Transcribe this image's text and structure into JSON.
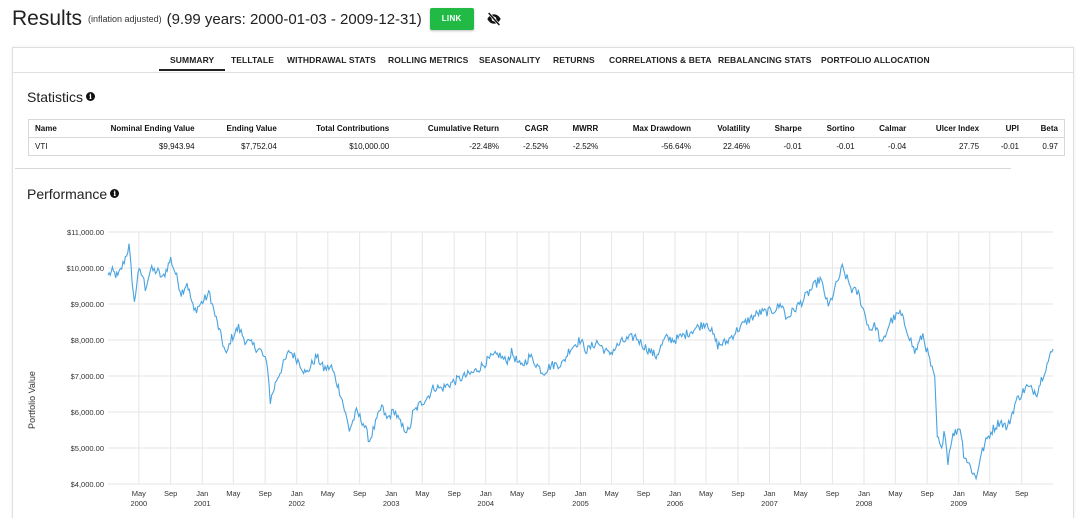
{
  "header": {
    "title": "Results",
    "subtitle": "(inflation adjusted)",
    "range": "(9.99 years: 2000-01-03 - 2009-12-31)",
    "link_label": "LINK",
    "link_color": "#21ba45",
    "visibility_icon": "eye-slash-icon"
  },
  "tabs": [
    {
      "label": "SUMMARY",
      "active": true
    },
    {
      "label": "TELLTALE"
    },
    {
      "label": "WITHDRAWAL STATS"
    },
    {
      "label": "ROLLING METRICS"
    },
    {
      "label": "SEASONALITY"
    },
    {
      "label": "RETURNS"
    },
    {
      "label": "CORRELATIONS & BETA"
    },
    {
      "label": "REBALANCING STATS"
    },
    {
      "label": "PORTFOLIO ALLOCATION"
    }
  ],
  "statistics": {
    "title": "Statistics",
    "columns": [
      "Name",
      "Nominal Ending Value",
      "Ending Value",
      "Total Contributions",
      "Cumulative Return",
      "CAGR",
      "MWRR",
      "Max Drawdown",
      "Volatility",
      "Sharpe",
      "Sortino",
      "Calmar",
      "Ulcer Index",
      "UPI",
      "Beta"
    ],
    "rows": [
      [
        "VTI",
        "$9,943.94",
        "$7,752.04",
        "$10,000.00",
        "-22.48%",
        "-2.52%",
        "-2.52%",
        "-56.64%",
        "22.46%",
        "-0.01",
        "-0.01",
        "-0.04",
        "27.75",
        "-0.01",
        "0.97"
      ]
    ]
  },
  "performance": {
    "title": "Performance",
    "series_color": "#4aa3df"
  },
  "chart_data": {
    "type": "line",
    "ylabel": "Portfolio Value",
    "ylim": [
      4000,
      11000
    ],
    "yticks": [
      "$4,000.00",
      "$5,000.00",
      "$6,000.00",
      "$7,000.00",
      "$8,000.00",
      "$9,000.00",
      "$10,000.00",
      "$11,000.00"
    ],
    "xlim": [
      "2000-01-03",
      "2009-12-31"
    ],
    "xticks": [
      {
        "label": "May",
        "year": "2000"
      },
      {
        "label": "Sep",
        "year": ""
      },
      {
        "label": "Jan",
        "year": "2001"
      },
      {
        "label": "May",
        "year": ""
      },
      {
        "label": "Sep",
        "year": ""
      },
      {
        "label": "Jan",
        "year": "2002"
      },
      {
        "label": "May",
        "year": ""
      },
      {
        "label": "Sep",
        "year": ""
      },
      {
        "label": "Jan",
        "year": "2003"
      },
      {
        "label": "May",
        "year": ""
      },
      {
        "label": "Sep",
        "year": ""
      },
      {
        "label": "Jan",
        "year": "2004"
      },
      {
        "label": "May",
        "year": ""
      },
      {
        "label": "Sep",
        "year": ""
      },
      {
        "label": "Jan",
        "year": "2005"
      },
      {
        "label": "May",
        "year": ""
      },
      {
        "label": "Sep",
        "year": ""
      },
      {
        "label": "Jan",
        "year": "2006"
      },
      {
        "label": "May",
        "year": ""
      },
      {
        "label": "Sep",
        "year": ""
      },
      {
        "label": "Jan",
        "year": "2007"
      },
      {
        "label": "May",
        "year": ""
      },
      {
        "label": "Sep",
        "year": ""
      },
      {
        "label": "Jan",
        "year": "2008"
      },
      {
        "label": "May",
        "year": ""
      },
      {
        "label": "Sep",
        "year": ""
      },
      {
        "label": "Jan",
        "year": "2009"
      },
      {
        "label": "May",
        "year": ""
      },
      {
        "label": "Sep",
        "year": ""
      }
    ],
    "grid": true,
    "series": [
      {
        "values": [
          [
            "2000-01-03",
            9800
          ],
          [
            "2000-01-20",
            9900
          ],
          [
            "2000-02-10",
            9750
          ],
          [
            "2000-03-01",
            10100
          ],
          [
            "2000-03-24",
            10600
          ],
          [
            "2000-04-05",
            9700
          ],
          [
            "2000-04-14",
            9000
          ],
          [
            "2000-04-28",
            9900
          ],
          [
            "2000-05-15",
            9800
          ],
          [
            "2000-05-26",
            9450
          ],
          [
            "2000-06-15",
            9950
          ],
          [
            "2000-07-14",
            9900
          ],
          [
            "2000-08-01",
            9700
          ],
          [
            "2000-09-01",
            10250
          ],
          [
            "2000-09-20",
            9850
          ],
          [
            "2000-10-12",
            9300
          ],
          [
            "2000-11-03",
            9600
          ],
          [
            "2000-11-30",
            8800
          ],
          [
            "2000-12-20",
            8950
          ],
          [
            "2001-01-30",
            9300
          ],
          [
            "2001-02-15",
            8800
          ],
          [
            "2001-03-22",
            7900
          ],
          [
            "2001-04-04",
            7550
          ],
          [
            "2001-04-20",
            8000
          ],
          [
            "2001-05-21",
            8350
          ],
          [
            "2001-06-15",
            8000
          ],
          [
            "2001-07-15",
            7850
          ],
          [
            "2001-08-15",
            7700
          ],
          [
            "2001-09-10",
            7300
          ],
          [
            "2001-09-21",
            6300
          ],
          [
            "2001-10-15",
            6900
          ],
          [
            "2001-11-15",
            7400
          ],
          [
            "2001-12-05",
            7700
          ],
          [
            "2002-01-10",
            7400
          ],
          [
            "2002-02-05",
            7050
          ],
          [
            "2002-03-19",
            7550
          ],
          [
            "2002-04-15",
            7200
          ],
          [
            "2002-05-15",
            7250
          ],
          [
            "2002-06-20",
            6500
          ],
          [
            "2002-07-23",
            5500
          ],
          [
            "2002-08-20",
            6000
          ],
          [
            "2002-09-15",
            5700
          ],
          [
            "2002-10-09",
            5200
          ],
          [
            "2002-11-25",
            6150
          ],
          [
            "2002-12-15",
            5800
          ],
          [
            "2003-01-13",
            6050
          ],
          [
            "2003-02-10",
            5600
          ],
          [
            "2003-03-11",
            5450
          ],
          [
            "2003-03-25",
            5950
          ],
          [
            "2003-04-20",
            6200
          ],
          [
            "2003-05-25",
            6450
          ],
          [
            "2003-06-15",
            6700
          ],
          [
            "2003-07-15",
            6650
          ],
          [
            "2003-08-20",
            6800
          ],
          [
            "2003-09-15",
            6900
          ],
          [
            "2003-10-15",
            7000
          ],
          [
            "2003-11-15",
            7100
          ],
          [
            "2003-12-20",
            7300
          ],
          [
            "2004-01-20",
            7500
          ],
          [
            "2004-02-20",
            7600
          ],
          [
            "2004-03-20",
            7400
          ],
          [
            "2004-04-10",
            7650
          ],
          [
            "2004-05-15",
            7250
          ],
          [
            "2004-06-20",
            7550
          ],
          [
            "2004-08-10",
            7100
          ],
          [
            "2004-09-10",
            7300
          ],
          [
            "2004-10-25",
            7350
          ],
          [
            "2004-11-20",
            7750
          ],
          [
            "2004-12-30",
            8000
          ],
          [
            "2005-01-25",
            7700
          ],
          [
            "2005-03-05",
            7950
          ],
          [
            "2005-04-20",
            7600
          ],
          [
            "2005-06-10",
            7950
          ],
          [
            "2005-08-01",
            8100
          ],
          [
            "2005-08-31",
            7850
          ],
          [
            "2005-10-20",
            7550
          ],
          [
            "2005-11-25",
            8050
          ],
          [
            "2005-12-30",
            8000
          ],
          [
            "2006-02-10",
            8150
          ],
          [
            "2006-03-15",
            8300
          ],
          [
            "2006-05-05",
            8500
          ],
          [
            "2006-06-15",
            7850
          ],
          [
            "2006-07-20",
            7950
          ],
          [
            "2006-09-01",
            8300
          ],
          [
            "2006-10-10",
            8550
          ],
          [
            "2006-11-20",
            8750
          ],
          [
            "2007-01-10",
            8800
          ],
          [
            "2007-02-20",
            9000
          ],
          [
            "2007-03-05",
            8600
          ],
          [
            "2007-03-20",
            8700
          ],
          [
            "2007-05-10",
            9100
          ],
          [
            "2007-06-05",
            9350
          ],
          [
            "2007-07-16",
            9700
          ],
          [
            "2007-08-06",
            9200
          ],
          [
            "2007-08-16",
            8900
          ],
          [
            "2007-09-15",
            9500
          ],
          [
            "2007-10-09",
            10000
          ],
          [
            "2007-11-15",
            9400
          ],
          [
            "2007-12-10",
            9300
          ],
          [
            "2008-01-22",
            8300
          ],
          [
            "2008-02-15",
            8400
          ],
          [
            "2008-03-10",
            7850
          ],
          [
            "2008-04-10",
            8500
          ],
          [
            "2008-05-19",
            8750
          ],
          [
            "2008-06-15",
            8300
          ],
          [
            "2008-07-15",
            7650
          ],
          [
            "2008-08-15",
            8150
          ],
          [
            "2008-09-15",
            7300
          ],
          [
            "2008-09-30",
            6900
          ],
          [
            "2008-10-10",
            5300
          ],
          [
            "2008-10-27",
            4900
          ],
          [
            "2008-11-05",
            5600
          ],
          [
            "2008-11-20",
            4650
          ],
          [
            "2008-12-05",
            5300
          ],
          [
            "2009-01-06",
            5600
          ],
          [
            "2009-01-20",
            4850
          ],
          [
            "2009-02-20",
            4400
          ],
          [
            "2009-03-09",
            4150
          ],
          [
            "2009-03-25",
            4750
          ],
          [
            "2009-04-20",
            5250
          ],
          [
            "2009-05-10",
            5500
          ],
          [
            "2009-06-10",
            5750
          ],
          [
            "2009-07-08",
            5550
          ],
          [
            "2009-08-10",
            6300
          ],
          [
            "2009-09-20",
            6700
          ],
          [
            "2009-10-30",
            6550
          ],
          [
            "2009-11-20",
            7000
          ],
          [
            "2009-12-31",
            7750
          ]
        ]
      }
    ]
  }
}
